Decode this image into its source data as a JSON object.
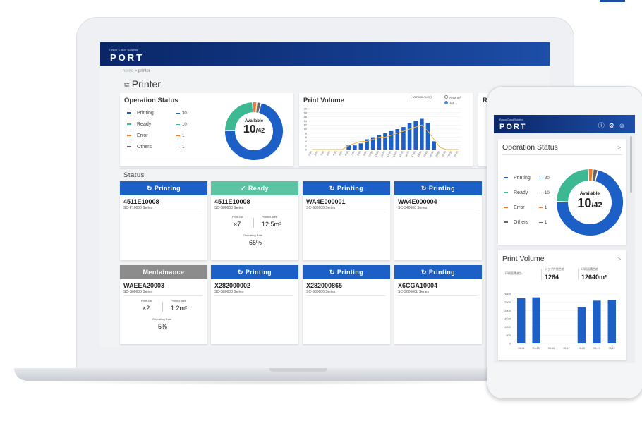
{
  "app": {
    "subtitle": "Epson Cloud Solution",
    "logo": "PORT"
  },
  "breadcrumb": {
    "home": "home",
    "sep": ">",
    "current": "printer"
  },
  "page_title": "Printer",
  "operation_status": {
    "title": "Operation Status",
    "legend": [
      {
        "label": "Printing",
        "count": "30",
        "color": "#1b5fc7"
      },
      {
        "label": "Ready",
        "count": "10",
        "color": "#3cb892"
      },
      {
        "label": "Error",
        "count": "1",
        "color": "#f07a2e"
      },
      {
        "label": "Others",
        "count": "1",
        "color": "#666666"
      }
    ],
    "donut_label": "Available",
    "donut_value": "10",
    "donut_total": "/42"
  },
  "print_volume": {
    "title": "Print Volume",
    "legend_caption": "( Vertical Axis )",
    "legend_items": [
      "Area m²",
      "Job"
    ]
  },
  "partial_card_title": "R",
  "status": {
    "title": "Status",
    "tiles": [
      {
        "status": "Printing",
        "color": "#1b5fc7",
        "id": "4511E10008",
        "model": "SC-P10000 Series",
        "icon": "sync-icon"
      },
      {
        "status": "Ready",
        "color": "#5cc3a3",
        "id": "4511E10008",
        "model": "SC-S80600 Series",
        "icon": "check-circle-icon",
        "print_job_label": "Print Job",
        "print_job": "7",
        "area_label": "Printed Area",
        "area": "12.5",
        "area_unit": "m²",
        "rate_label": "Operating Rate",
        "rate": "65",
        "rate_unit": "%"
      },
      {
        "status": "Printing",
        "color": "#1b5fc7",
        "id": "WA4E000001",
        "model": "SC-S80600 Series",
        "icon": "sync-icon"
      },
      {
        "status": "Printing",
        "color": "#1b5fc7",
        "id": "WA4E000004",
        "model": "SC-S40600 Series",
        "icon": "sync-icon"
      },
      {
        "status": "Mentainance",
        "color": "#8c8c8c",
        "id": "WAEEA20003",
        "model": "SC-S60600 Series",
        "icon": "",
        "print_job_label": "Print Job",
        "print_job": "2",
        "area_label": "Printed Area",
        "area": "1.2",
        "area_unit": "m²",
        "rate_label": "Operating Rate",
        "rate": "5",
        "rate_unit": "%"
      },
      {
        "status": "Printing",
        "color": "#1b5fc7",
        "id": "X282000002",
        "model": "SC-S80600 Series",
        "icon": "sync-icon"
      },
      {
        "status": "Printing",
        "color": "#1b5fc7",
        "id": "X282000865",
        "model": "SC-S80600 Series",
        "icon": "sync-icon"
      },
      {
        "status": "Printing",
        "color": "#1b5fc7",
        "id": "X6CGA10004",
        "model": "SC-S60600L Series",
        "icon": "sync-icon"
      }
    ]
  },
  "phone": {
    "operation_status": {
      "title": "Operation Status",
      "chev": ">",
      "donut_label": "Available",
      "donut_value": "10",
      "donut_total": "/42",
      "legend": [
        {
          "label": "Printing",
          "count": "30",
          "color": "#1b5fc7"
        },
        {
          "label": "Ready",
          "count": "10",
          "color": "#3cb892"
        },
        {
          "label": "Error",
          "count": "1",
          "color": "#f07a2e"
        },
        {
          "label": "Others",
          "count": "1",
          "color": "#666666"
        }
      ]
    },
    "print_volume": {
      "title": "Print Volume",
      "chev": ">",
      "stats": [
        {
          "label": "印刷面積合計",
          "value": ""
        },
        {
          "label": "ジョブ件数合計",
          "value": "1264"
        },
        {
          "label": "印刷面積合計",
          "value": "12640m²"
        }
      ]
    }
  },
  "chart_data": [
    {
      "type": "bar",
      "title": "Print Volume",
      "series": [
        {
          "name": "Area m²",
          "values": [
            0,
            0,
            0,
            0,
            0,
            0,
            2,
            2,
            3,
            5,
            6,
            7,
            8,
            9,
            10,
            11,
            13,
            14,
            15,
            13,
            4,
            0,
            0,
            0,
            0
          ]
        },
        {
          "name": "Job",
          "values": [
            0,
            0,
            0,
            0,
            0,
            0,
            2,
            3,
            4,
            4,
            5,
            6,
            6,
            7,
            8,
            9,
            10,
            11,
            12,
            9,
            5,
            1,
            0,
            0,
            0
          ]
        }
      ],
      "ylim": [
        0,
        20
      ],
      "yticks": [
        "0",
        "2",
        "4",
        "6",
        "8",
        "10",
        "12",
        "14",
        "16",
        "18",
        "20"
      ],
      "categories": [
        "0:00",
        "1:00",
        "2:00",
        "3:00",
        "4:00",
        "5:00",
        "6:00",
        "7:00",
        "8:00",
        "9:00",
        "10:00",
        "11:00",
        "12:00",
        "13:00",
        "14:00",
        "15:00",
        "16:00",
        "17:00",
        "18:00",
        "19:00",
        "20:00",
        "21:00",
        "22:00",
        "23:00",
        "24:00"
      ]
    },
    {
      "type": "bar",
      "title": "Print Volume",
      "categories": [
        "05-16",
        "05-15",
        "05-18",
        "05-17",
        "05-20",
        "05-19",
        "05-22"
      ],
      "values": [
        2750,
        2800,
        0,
        0,
        2200,
        2600,
        2650
      ],
      "ylim": [
        0,
        3000
      ],
      "yticks": [
        "0",
        "500",
        "1000",
        "1500",
        "2000",
        "2500",
        "3000"
      ]
    }
  ]
}
